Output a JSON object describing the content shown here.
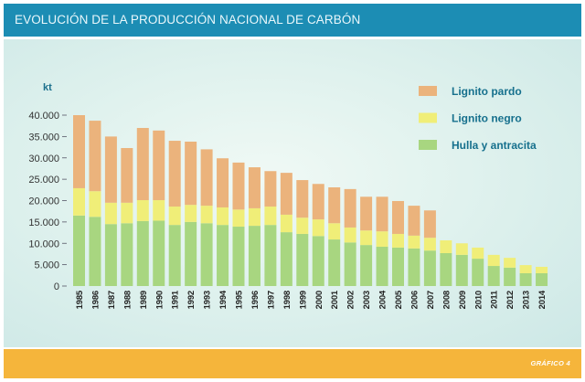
{
  "footer": {
    "label": "GRÁFICO 4"
  },
  "chart_data": {
    "type": "bar",
    "stacked": true,
    "title": "EVOLUCIÓN DE LA PRODUCCIÓN NACIONAL DE CARBÓN",
    "ylabel": "kt",
    "ylim": [
      0,
      40000
    ],
    "yticks": [
      0,
      5000,
      10000,
      15000,
      20000,
      25000,
      30000,
      35000,
      40000
    ],
    "ytick_labels": [
      "0",
      "5.000",
      "10.000",
      "15.000",
      "20.000",
      "25.000",
      "30.000",
      "35.000",
      "40.000"
    ],
    "grid": false,
    "legend_position": "top-right",
    "categories": [
      "1985",
      "1986",
      "1987",
      "1988",
      "1989",
      "1990",
      "1991",
      "1992",
      "1993",
      "1994",
      "1995",
      "1996",
      "1997",
      "1998",
      "1999",
      "2000",
      "2001",
      "2002",
      "2003",
      "2004",
      "2005",
      "2006",
      "2007",
      "2008",
      "2009",
      "2010",
      "2011",
      "2012",
      "2013",
      "2014"
    ],
    "series": [
      {
        "name": "Hulla y antracita",
        "color": "#a8d680",
        "values": [
          16500,
          16200,
          14500,
          14700,
          15200,
          15300,
          14300,
          15000,
          14700,
          14300,
          13900,
          14100,
          14300,
          12600,
          12200,
          11700,
          10900,
          10200,
          9600,
          9200,
          9000,
          8800,
          8300,
          7700,
          7300,
          6400,
          4700,
          4300,
          3000,
          3000
        ]
      },
      {
        "name": "Lignito negro",
        "color": "#f0ee78",
        "values": [
          6400,
          6000,
          5000,
          4800,
          4900,
          4800,
          4300,
          4000,
          4100,
          4100,
          4000,
          4100,
          4300,
          4100,
          3800,
          3900,
          3800,
          3500,
          3400,
          3600,
          3200,
          3000,
          3000,
          3000,
          2700,
          2600,
          2600,
          2300,
          1900,
          1500
        ]
      },
      {
        "name": "Lignito pardo",
        "color": "#ebb37c",
        "values": [
          17100,
          16500,
          15500,
          12800,
          16900,
          16300,
          15400,
          14800,
          13200,
          11500,
          11000,
          9600,
          8300,
          9800,
          8800,
          8300,
          8400,
          9000,
          7900,
          8100,
          7700,
          7000,
          6400,
          0,
          0,
          0,
          0,
          0,
          0,
          0
        ]
      }
    ]
  }
}
